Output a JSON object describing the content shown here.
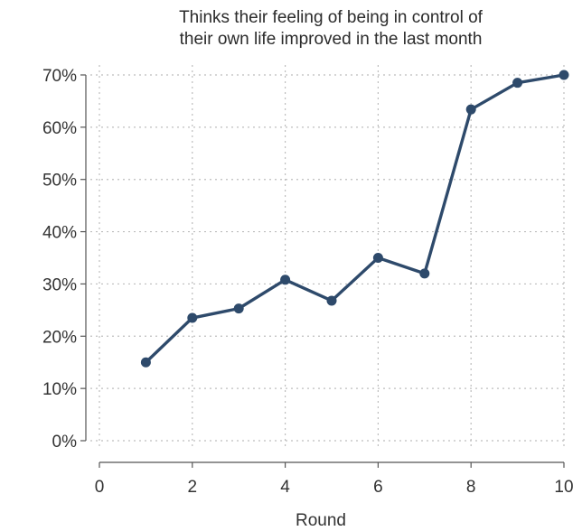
{
  "chart_data": {
    "type": "line",
    "title_lines": [
      "Thinks their feeling of being in control of",
      "their own life improved in the last month"
    ],
    "xlabel": "Round",
    "ylabel": "",
    "xlim": [
      0,
      10
    ],
    "ylim": [
      0,
      0.7
    ],
    "x_ticks": [
      0,
      2,
      4,
      6,
      8,
      10
    ],
    "y_ticks": [
      0,
      0.1,
      0.2,
      0.3,
      0.4,
      0.5,
      0.6,
      0.7
    ],
    "y_tick_labels": [
      "0%",
      "10%",
      "20%",
      "30%",
      "40%",
      "50%",
      "60%",
      "70%"
    ],
    "grid": true,
    "x": [
      1,
      2,
      3,
      4,
      5,
      6,
      7,
      8,
      9,
      10
    ],
    "series": [
      {
        "values": [
          0.15,
          0.235,
          0.253,
          0.308,
          0.268,
          0.35,
          0.32,
          0.634,
          0.685,
          0.7
        ],
        "color": "#2e4a6b"
      }
    ]
  }
}
